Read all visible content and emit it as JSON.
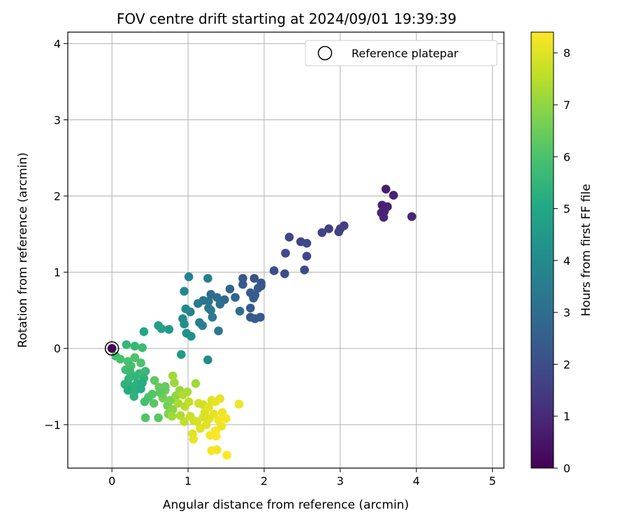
{
  "chart_data": {
    "type": "scatter",
    "title": "FOV centre drift starting at 2024/09/01 19:39:39",
    "xlabel": "Angular distance from reference (arcmin)",
    "ylabel": "Rotation from reference (arcmin)",
    "xlim": [
      -0.58,
      5.15
    ],
    "ylim": [
      -1.57,
      4.15
    ],
    "x_ticks": [
      0,
      1,
      2,
      3,
      4,
      5
    ],
    "y_ticks": [
      -1,
      0,
      1,
      2,
      3,
      4
    ],
    "grid": true,
    "legend": {
      "position": "top-right",
      "entries": [
        "Reference platepar"
      ]
    },
    "reference_point": {
      "name": "Reference platepar",
      "x": 0.0,
      "y": 0.0
    },
    "colorbar": {
      "label": "Hours from first FF file",
      "colormap": "viridis",
      "range": [
        0,
        8.4
      ],
      "ticks": [
        0,
        1,
        2,
        3,
        4,
        5,
        6,
        7,
        8
      ]
    },
    "points": [
      [
        0.0,
        0.0,
        0.0
      ],
      [
        3.6,
        2.09,
        0.7
      ],
      [
        3.7,
        2.01,
        0.8
      ],
      [
        3.55,
        1.88,
        0.75
      ],
      [
        3.62,
        1.86,
        0.8
      ],
      [
        3.58,
        1.8,
        0.8
      ],
      [
        3.54,
        1.78,
        0.85
      ],
      [
        3.57,
        1.72,
        0.85
      ],
      [
        3.94,
        1.73,
        0.9
      ],
      [
        3.05,
        1.61,
        1.5
      ],
      [
        3.0,
        1.57,
        1.55
      ],
      [
        2.85,
        1.57,
        1.6
      ],
      [
        2.98,
        1.53,
        1.6
      ],
      [
        2.76,
        1.52,
        1.65
      ],
      [
        2.33,
        1.46,
        1.7
      ],
      [
        2.48,
        1.4,
        1.75
      ],
      [
        2.56,
        1.38,
        1.8
      ],
      [
        2.28,
        1.25,
        1.85
      ],
      [
        2.56,
        1.21,
        1.85
      ],
      [
        2.53,
        1.03,
        1.9
      ],
      [
        2.13,
        1.02,
        1.95
      ],
      [
        2.27,
        0.98,
        2.0
      ],
      [
        1.87,
        0.92,
        2.1
      ],
      [
        1.72,
        0.92,
        2.2
      ],
      [
        1.96,
        0.86,
        2.2
      ],
      [
        1.72,
        0.84,
        2.3
      ],
      [
        1.96,
        0.82,
        2.25
      ],
      [
        1.92,
        0.79,
        2.3
      ],
      [
        1.82,
        0.73,
        2.4
      ],
      [
        1.88,
        0.7,
        2.4
      ],
      [
        1.86,
        0.66,
        2.5
      ],
      [
        1.82,
        0.53,
        2.4
      ],
      [
        1.82,
        0.41,
        2.3
      ],
      [
        1.88,
        0.39,
        2.4
      ],
      [
        1.95,
        0.41,
        2.35
      ],
      [
        1.55,
        0.78,
        2.7
      ],
      [
        1.62,
        0.67,
        2.8
      ],
      [
        1.48,
        0.64,
        2.9
      ],
      [
        1.38,
        0.67,
        3.0
      ],
      [
        1.42,
        0.58,
        3.1
      ],
      [
        1.3,
        0.71,
        3.0
      ],
      [
        1.27,
        0.62,
        3.2
      ],
      [
        1.2,
        0.63,
        3.3
      ],
      [
        1.13,
        0.59,
        3.4
      ],
      [
        1.27,
        0.53,
        3.4
      ],
      [
        1.3,
        0.5,
        3.5
      ],
      [
        1.32,
        0.41,
        3.4
      ],
      [
        1.15,
        0.34,
        3.6
      ],
      [
        1.19,
        0.3,
        3.6
      ],
      [
        1.4,
        0.23,
        3.4
      ],
      [
        1.68,
        0.49,
        3.0
      ],
      [
        1.03,
        0.48,
        3.7
      ],
      [
        1.26,
        0.92,
        3.6
      ],
      [
        1.01,
        0.94,
        3.8
      ],
      [
        0.95,
        0.75,
        3.9
      ],
      [
        0.97,
        0.52,
        4.0
      ],
      [
        0.93,
        0.39,
        4.0
      ],
      [
        0.95,
        0.32,
        4.1
      ],
      [
        0.98,
        0.2,
        4.2
      ],
      [
        1.04,
        0.16,
        4.2
      ],
      [
        1.26,
        -0.15,
        4.0
      ],
      [
        0.91,
        -0.08,
        4.5
      ],
      [
        0.75,
        0.25,
        4.5
      ],
      [
        0.61,
        0.3,
        4.7
      ],
      [
        0.65,
        0.26,
        4.8
      ],
      [
        0.42,
        0.22,
        5.0
      ],
      [
        0.19,
        0.05,
        5.5
      ],
      [
        0.3,
        0.03,
        5.6
      ],
      [
        0.4,
        0.01,
        5.7
      ],
      [
        0.05,
        -0.1,
        5.8
      ],
      [
        0.11,
        -0.14,
        5.9
      ],
      [
        0.21,
        -0.17,
        6.0
      ],
      [
        0.3,
        -0.12,
        6.0
      ],
      [
        0.38,
        -0.19,
        6.0
      ],
      [
        0.25,
        -0.23,
        5.9
      ],
      [
        0.18,
        -0.28,
        5.8
      ],
      [
        0.24,
        -0.31,
        5.7
      ],
      [
        0.36,
        -0.33,
        5.6
      ],
      [
        0.44,
        -0.3,
        5.6
      ],
      [
        0.31,
        -0.37,
        5.5
      ],
      [
        0.22,
        -0.4,
        5.5
      ],
      [
        0.42,
        -0.39,
        5.4
      ],
      [
        0.17,
        -0.47,
        5.4
      ],
      [
        0.26,
        -0.5,
        5.3
      ],
      [
        0.33,
        -0.46,
        5.3
      ],
      [
        0.4,
        -0.45,
        5.2
      ],
      [
        0.21,
        -0.55,
        5.2
      ],
      [
        0.3,
        -0.56,
        5.3
      ],
      [
        0.38,
        -0.53,
        5.2
      ],
      [
        0.29,
        -0.63,
        5.4
      ],
      [
        0.48,
        -0.64,
        6.0
      ],
      [
        0.53,
        -0.6,
        6.1
      ],
      [
        0.43,
        -0.7,
        5.9
      ],
      [
        0.56,
        -0.42,
        6.3
      ],
      [
        0.62,
        -0.51,
        6.4
      ],
      [
        0.7,
        -0.55,
        6.5
      ],
      [
        0.67,
        -0.65,
        6.6
      ],
      [
        0.73,
        -0.75,
        6.6
      ],
      [
        0.77,
        -0.68,
        6.7
      ],
      [
        0.61,
        -0.91,
        6.2
      ],
      [
        0.44,
        -0.91,
        6.1
      ],
      [
        0.74,
        -0.86,
        6.8
      ],
      [
        0.8,
        -0.8,
        6.9
      ],
      [
        0.84,
        -0.62,
        7.0
      ],
      [
        0.89,
        -0.55,
        7.1
      ],
      [
        0.82,
        -0.45,
        7.1
      ],
      [
        0.8,
        -0.36,
        7.2
      ],
      [
        0.87,
        -0.72,
        7.3
      ],
      [
        0.93,
        -0.61,
        7.4
      ],
      [
        0.99,
        -0.57,
        7.3
      ],
      [
        1.1,
        -0.46,
        7.2
      ],
      [
        0.96,
        -0.76,
        7.5
      ],
      [
        1.01,
        -0.7,
        7.6
      ],
      [
        0.9,
        -0.88,
        7.4
      ],
      [
        0.95,
        -0.96,
        7.6
      ],
      [
        1.03,
        -0.89,
        7.7
      ],
      [
        1.08,
        -0.95,
        7.7
      ],
      [
        0.79,
        -0.89,
        7.2
      ],
      [
        1.14,
        -0.72,
        7.8
      ],
      [
        1.2,
        -0.74,
        7.8
      ],
      [
        1.22,
        -0.84,
        7.9
      ],
      [
        1.27,
        -0.77,
        8.0
      ],
      [
        1.31,
        -0.68,
        8.0
      ],
      [
        1.36,
        -0.7,
        8.1
      ],
      [
        1.42,
        -0.66,
        8.1
      ],
      [
        1.28,
        -0.92,
        8.0
      ],
      [
        1.34,
        -0.86,
        8.1
      ],
      [
        1.4,
        -0.94,
        8.2
      ],
      [
        1.45,
        -0.84,
        8.2
      ],
      [
        1.5,
        -0.92,
        8.3
      ],
      [
        1.44,
        -1.02,
        8.2
      ],
      [
        1.36,
        -1.08,
        8.3
      ],
      [
        1.29,
        -1.14,
        8.3
      ],
      [
        1.37,
        -1.15,
        8.4
      ],
      [
        1.16,
        -1.05,
        8.0
      ],
      [
        1.06,
        -1.12,
        8.0
      ],
      [
        1.07,
        -1.19,
        8.1
      ],
      [
        1.67,
        -0.73,
        8.2
      ],
      [
        1.38,
        -1.33,
        8.3
      ],
      [
        1.31,
        -1.34,
        8.3
      ],
      [
        1.51,
        -1.4,
        8.4
      ],
      [
        1.2,
        -0.9,
        7.9
      ],
      [
        1.12,
        -0.96,
        7.9
      ],
      [
        1.24,
        -1.0,
        8.0
      ],
      [
        0.7,
        -0.5,
        6.4
      ],
      [
        0.55,
        -0.72,
        6.2
      ],
      [
        0.63,
        -0.58,
        6.3
      ]
    ]
  }
}
